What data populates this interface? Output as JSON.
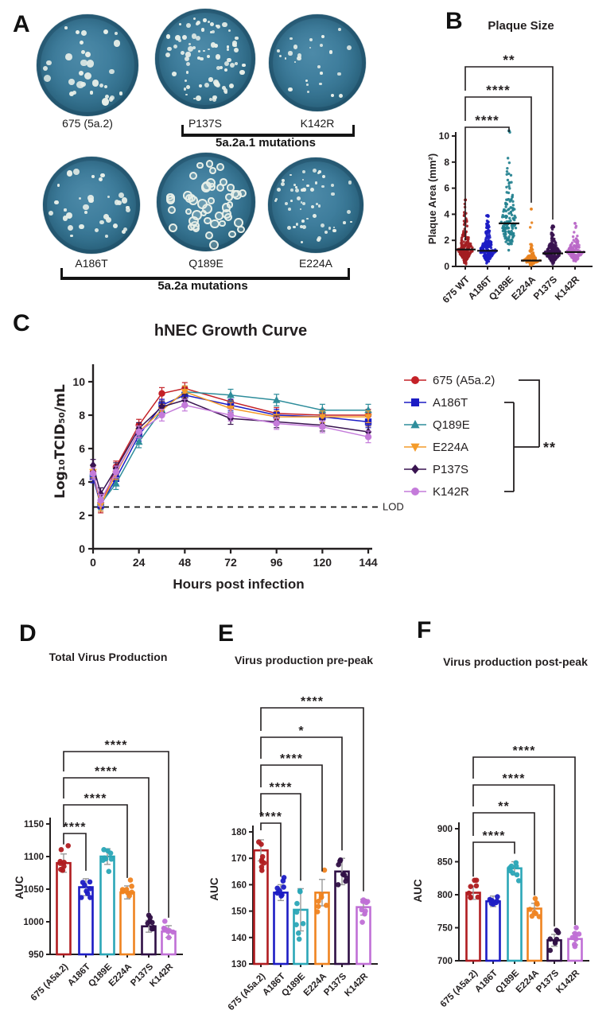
{
  "panels": {
    "a": "A",
    "b": "B",
    "c": "C",
    "d": "D",
    "e": "E",
    "f": "F"
  },
  "panel_a": {
    "rows": [
      {
        "dishes": [
          {
            "label": "675 (5a.2)",
            "plaque_count": 32
          },
          {
            "label": "P137S",
            "plaque_count": 78
          },
          {
            "label": "K142R",
            "plaque_count": 26
          }
        ],
        "group_label": "5a.2a.1 mutations"
      },
      {
        "dishes": [
          {
            "label": "A186T",
            "plaque_count": 34
          },
          {
            "label": "Q189E",
            "plaque_count": 48
          },
          {
            "label": "E224A",
            "plaque_count": 56
          }
        ],
        "group_label": "5a.2a mutations"
      }
    ]
  },
  "chart_data": [
    {
      "id": "plaque-size",
      "type": "scatter",
      "title": "Plaque Size",
      "ylabel": "Plaque Area (mm²)",
      "ylim": [
        0,
        10
      ],
      "yticks": [
        0,
        2,
        4,
        6,
        8,
        10
      ],
      "categories": [
        "675 WT",
        "A186T",
        "Q189E",
        "E224A",
        "P137S",
        "K142R"
      ],
      "colors": [
        "#A31D22",
        "#1C1CC4",
        "#23818F",
        "#E8821E",
        "#391450",
        "#BA68C8"
      ],
      "medians": [
        1.3,
        1.2,
        3.3,
        0.45,
        1.0,
        1.1
      ],
      "max_values": [
        5.1,
        3.9,
        10.4,
        4.4,
        3.1,
        3.3
      ],
      "n_points": [
        210,
        210,
        140,
        120,
        210,
        130
      ],
      "spread_sigma": [
        0.6,
        0.6,
        0.42,
        0.7,
        0.55,
        0.45
      ],
      "significance": [
        {
          "from": 0,
          "to": 2,
          "label": "****"
        },
        {
          "from": 0,
          "to": 3,
          "label": "****"
        },
        {
          "from": 0,
          "to": 4,
          "label": "**"
        }
      ]
    },
    {
      "id": "growth-curve",
      "type": "line",
      "title": "hNEC Growth Curve",
      "xlabel": "Hours post infection",
      "ylabel": "Log₁₀TCID₅₀/mL",
      "x": [
        0,
        4,
        12,
        24,
        36,
        48,
        72,
        96,
        120,
        144
      ],
      "xticks": [
        0,
        24,
        48,
        72,
        96,
        120,
        144
      ],
      "ylim": [
        0,
        11
      ],
      "yticks": [
        0,
        2,
        4,
        6,
        8,
        10
      ],
      "error_bar": 0.35,
      "lod": {
        "value": 2.5,
        "label": "LOD"
      },
      "series": [
        {
          "name": "675 (A5a.2)",
          "marker": "circle",
          "color": "#C42127",
          "values": [
            4.6,
            2.5,
            4.9,
            7.4,
            9.3,
            9.6,
            8.8,
            8.1,
            8.0,
            8.0
          ]
        },
        {
          "name": "A186T",
          "marker": "square",
          "color": "#1C1CC4",
          "values": [
            4.3,
            2.6,
            4.2,
            6.8,
            8.6,
            9.2,
            8.6,
            8.0,
            7.9,
            7.6
          ]
        },
        {
          "name": "Q189E",
          "marker": "triangle-up",
          "color": "#2E8D9B",
          "values": [
            4.5,
            2.7,
            3.9,
            6.4,
            8.3,
            9.4,
            9.2,
            8.9,
            8.3,
            8.3
          ]
        },
        {
          "name": "E224A",
          "marker": "triangle-down",
          "color": "#F49B2A",
          "values": [
            4.6,
            2.6,
            4.5,
            7.0,
            8.3,
            9.4,
            8.4,
            7.9,
            7.9,
            7.9
          ]
        },
        {
          "name": "P137S",
          "marker": "diamond",
          "color": "#391450",
          "values": [
            5.0,
            3.3,
            4.8,
            7.2,
            8.5,
            8.9,
            7.8,
            7.6,
            7.4,
            7.0
          ]
        },
        {
          "name": "K142R",
          "marker": "circle",
          "color": "#C47BDA",
          "values": [
            4.5,
            2.9,
            4.6,
            7.0,
            8.0,
            8.6,
            8.0,
            7.5,
            7.3,
            6.7
          ]
        }
      ],
      "legend_significance": "**"
    },
    {
      "id": "total-virus",
      "type": "bar",
      "title": "Total Virus Production",
      "ylabel": "AUC",
      "ylim": [
        950,
        1150
      ],
      "yticks": [
        950,
        1000,
        1050,
        1100,
        1150
      ],
      "categories": [
        "675 (A5a.2)",
        "A186T",
        "Q189E",
        "E224A",
        "P137S",
        "K142R"
      ],
      "colors": [
        "#B01C20",
        "#1C1CC4",
        "#2BA7B7",
        "#EF8320",
        "#2F0F45",
        "#C06FD6"
      ],
      "values": [
        1090,
        1053,
        1100,
        1045,
        993,
        985
      ],
      "sd": [
        14,
        13,
        12,
        10,
        9,
        9
      ],
      "n_dots": 8,
      "significance": [
        {
          "from": 0,
          "to": 1,
          "label": "****"
        },
        {
          "from": 0,
          "to": 3,
          "label": "****"
        },
        {
          "from": 0,
          "to": 4,
          "label": "****"
        },
        {
          "from": 0,
          "to": 5,
          "label": "****"
        }
      ]
    },
    {
      "id": "pre-peak",
      "type": "bar",
      "title": "Virus production pre-peak",
      "ylabel": "AUC",
      "ylim": [
        130,
        180
      ],
      "yticks": [
        130,
        140,
        150,
        160,
        170,
        180
      ],
      "categories": [
        "675 (A5a.2)",
        "A186T",
        "Q189E",
        "E224A",
        "P137S",
        "K142R"
      ],
      "colors": [
        "#B01C20",
        "#1C1CC4",
        "#2BA7B7",
        "#EF8320",
        "#2F0F45",
        "#C06FD6"
      ],
      "values": [
        173,
        157,
        150.5,
        157,
        165,
        151.5
      ],
      "sd": [
        4,
        3,
        8,
        5,
        5,
        3
      ],
      "n_dots": 8,
      "significance": [
        {
          "from": 0,
          "to": 1,
          "label": "****"
        },
        {
          "from": 0,
          "to": 2,
          "label": "****"
        },
        {
          "from": 0,
          "to": 3,
          "label": "****"
        },
        {
          "from": 0,
          "to": 4,
          "label": "*"
        },
        {
          "from": 0,
          "to": 5,
          "label": "****"
        }
      ]
    },
    {
      "id": "post-peak",
      "type": "bar",
      "title": "Virus production post-peak",
      "ylabel": "AUC",
      "ylim": [
        700,
        900
      ],
      "yticks": [
        700,
        750,
        800,
        850,
        900
      ],
      "categories": [
        "675 (A5a.2)",
        "A186T",
        "Q189E",
        "E224A",
        "P137S",
        "K142R"
      ],
      "colors": [
        "#B01C20",
        "#1C1CC4",
        "#2BA7B7",
        "#EF8320",
        "#2F0F45",
        "#C06FD6"
      ],
      "values": [
        803,
        790,
        840,
        779,
        731,
        733
      ],
      "sd": [
        10,
        8,
        10,
        8,
        9,
        9
      ],
      "n_dots": 8,
      "significance": [
        {
          "from": 0,
          "to": 2,
          "label": "****"
        },
        {
          "from": 0,
          "to": 3,
          "label": "**"
        },
        {
          "from": 0,
          "to": 4,
          "label": "****"
        },
        {
          "from": 0,
          "to": 5,
          "label": "****"
        }
      ]
    }
  ]
}
